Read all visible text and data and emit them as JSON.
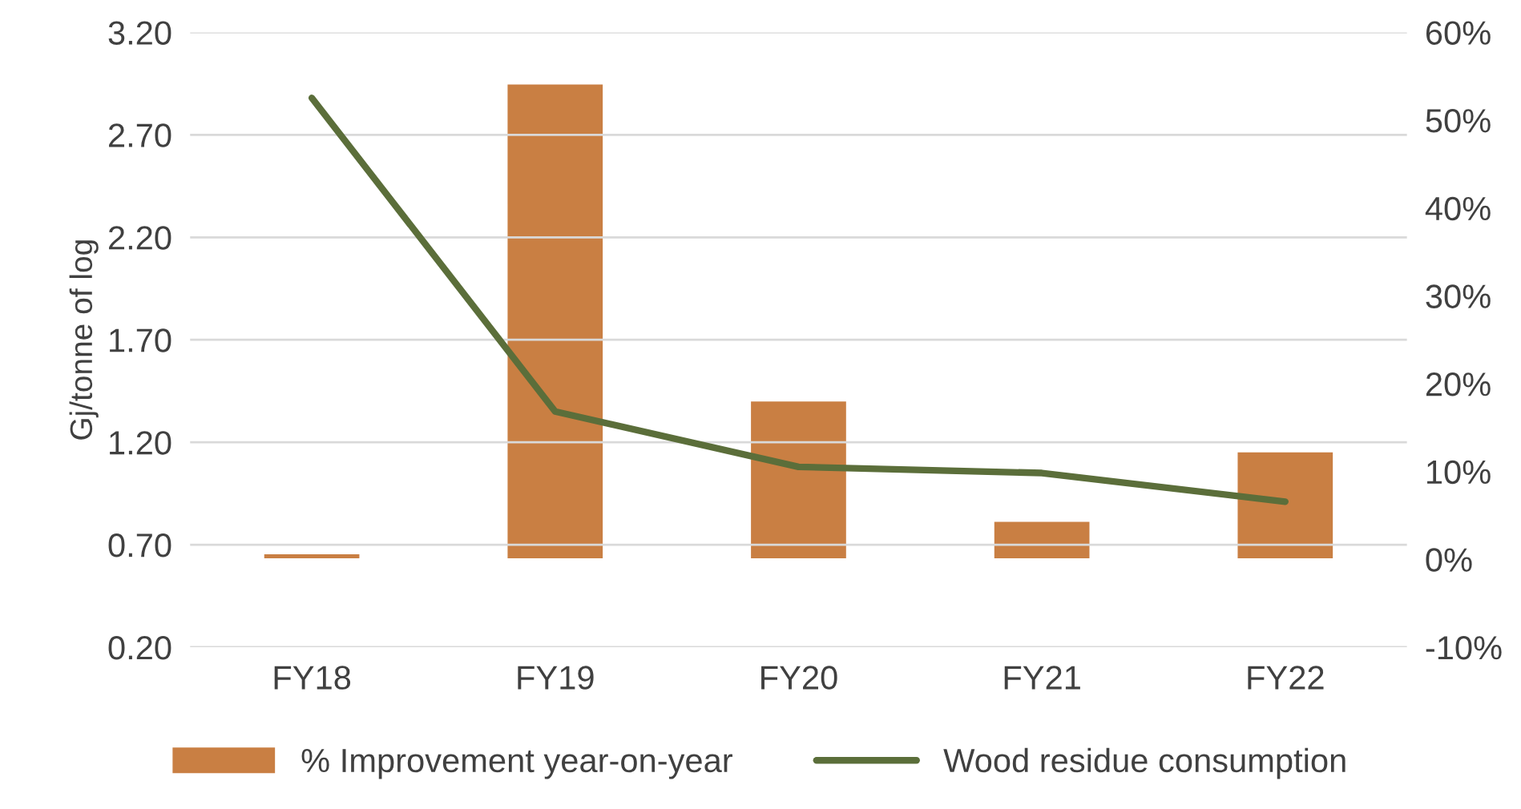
{
  "chart_data": {
    "type": "bar",
    "ylabel": "Gj/tonne of log",
    "categories": [
      "FY18",
      "FY19",
      "FY20",
      "FY21",
      "FY22"
    ],
    "series": [
      {
        "name": "% Improvement year-on-year",
        "axis": "y2",
        "color": "#c97f43",
        "values": [
          0.7,
          54.2,
          18.1,
          4.4,
          12.3
        ]
      },
      {
        "name": "Wood residue consumption",
        "type": "line",
        "color": "#5b6e3a",
        "values": [
          2.88,
          1.35,
          1.08,
          1.05,
          0.91
        ]
      }
    ],
    "ylim": [
      0.2,
      3.2
    ],
    "yticks": [
      {
        "value": 0.2,
        "label": "0.20"
      },
      {
        "value": 0.7,
        "label": "0.70"
      },
      {
        "value": 1.2,
        "label": "1.20"
      },
      {
        "value": 1.7,
        "label": "1.70"
      },
      {
        "value": 2.2,
        "label": "2.20"
      },
      {
        "value": 2.7,
        "label": "2.70"
      },
      {
        "value": 3.2,
        "label": "3.20"
      }
    ],
    "y2lim": [
      -10,
      60
    ],
    "y2ticks": [
      {
        "value": -10,
        "label": "-10%"
      },
      {
        "value": 0,
        "label": "0%"
      },
      {
        "value": 10,
        "label": "10%"
      },
      {
        "value": 20,
        "label": "20%"
      },
      {
        "value": 30,
        "label": "30%"
      },
      {
        "value": 40,
        "label": "40%"
      },
      {
        "value": 50,
        "label": "50%"
      },
      {
        "value": 60,
        "label": "60%"
      }
    ],
    "grid": "y",
    "legend": "bottom",
    "marker": "none",
    "line_style": "solid"
  }
}
